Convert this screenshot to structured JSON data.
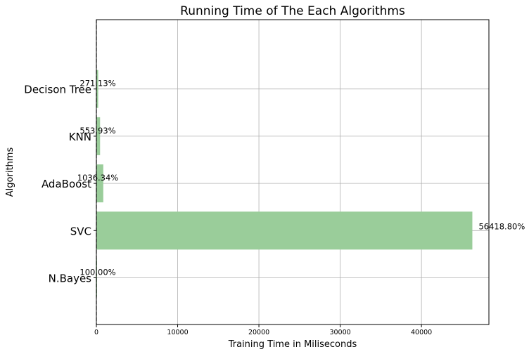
{
  "chart_data": {
    "type": "bar",
    "orientation": "horizontal",
    "title": "Running Time of The Each Algorithms",
    "xlabel": "Training Time in Miliseconds",
    "ylabel": "Algorithms",
    "categories": [
      "N.Bayes",
      "SVC",
      "AdaBoost",
      "KNN",
      "Decison Tree"
    ],
    "values": [
      82,
      46263,
      850,
      454,
      222
    ],
    "bar_labels": [
      "100.00%",
      "56418.80%",
      "1036.34%",
      "553.93%",
      "271.13%"
    ],
    "xlim": [
      0,
      48300
    ],
    "xticks": [
      0,
      10000,
      20000,
      30000,
      40000
    ],
    "xtick_labels": [
      "0",
      "10000",
      "20000",
      "30000",
      "40000"
    ],
    "grid": true,
    "bar_color": "#9acd9a",
    "zero_line_style": "dashed"
  }
}
